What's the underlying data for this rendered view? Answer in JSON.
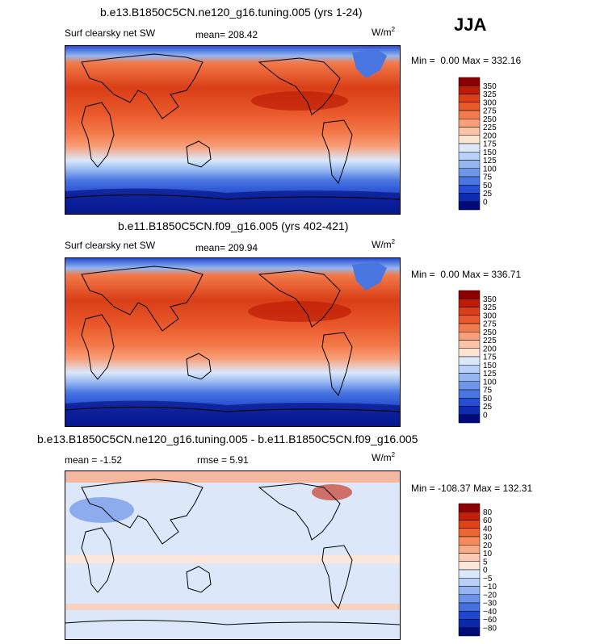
{
  "season": "JJA",
  "units": "W/m",
  "units_exp": "2",
  "chart_data": [
    {
      "type": "heatmap",
      "title": "b.e13.B1850C5CN.ne120_g16.tuning.005 (yrs 1-24)",
      "variable": "Surf clearsky net SW",
      "mean_label": "mean=",
      "mean": "208.42",
      "min_label": "Min =",
      "min": "0.00",
      "max_label": "Max =",
      "max": "332.16",
      "colorbar": {
        "levels": [
          "350",
          "325",
          "300",
          "275",
          "250",
          "225",
          "200",
          "175",
          "150",
          "125",
          "100",
          "75",
          "50",
          "25",
          "0"
        ],
        "colors": [
          "#8b0000",
          "#bd1c06",
          "#d93e16",
          "#e9582a",
          "#f37a4a",
          "#f8a07a",
          "#fbc4a8",
          "#fde3d2",
          "#dce8fa",
          "#b9d1f7",
          "#94b6f1",
          "#6e97ea",
          "#4a76e1",
          "#264ed3",
          "#0d2cb2",
          "#000a78"
        ]
      }
    },
    {
      "type": "heatmap",
      "title": "b.e11.B1850C5CN.f09_g16.005 (yrs 402-421)",
      "variable": "Surf clearsky net SW",
      "mean_label": "mean=",
      "mean": "209.94",
      "min_label": "Min =",
      "min": "0.00",
      "max_label": "Max =",
      "max": "336.71",
      "colorbar": {
        "levels": [
          "350",
          "325",
          "300",
          "275",
          "250",
          "225",
          "200",
          "175",
          "150",
          "125",
          "100",
          "75",
          "50",
          "25",
          "0"
        ],
        "colors": [
          "#8b0000",
          "#bd1c06",
          "#d93e16",
          "#e9582a",
          "#f37a4a",
          "#f8a07a",
          "#fbc4a8",
          "#fde3d2",
          "#dce8fa",
          "#b9d1f7",
          "#94b6f1",
          "#6e97ea",
          "#4a76e1",
          "#264ed3",
          "#0d2cb2",
          "#000a78"
        ]
      }
    },
    {
      "type": "heatmap",
      "title": "b.e13.B1850C5CN.ne120_g16.tuning.005 - b.e11.B1850C5CN.f09_g16.005",
      "mean_label": "mean =",
      "mean": "-1.52",
      "rmse_label": "rmse =",
      "rmse": "5.91",
      "min_label": "Min =",
      "min": "-108.37",
      "max_label": "Max =",
      "max": "132.31",
      "colorbar": {
        "levels": [
          "80",
          "60",
          "40",
          "30",
          "20",
          "10",
          "5",
          "0",
          "-5",
          "-10",
          "-20",
          "-30",
          "-40",
          "-60",
          "-80"
        ],
        "colors": [
          "#8b0000",
          "#c41f08",
          "#de4218",
          "#ee6534",
          "#f68a5c",
          "#f9ab88",
          "#fccab2",
          "#fde6da",
          "#dbe8fb",
          "#b8d0f7",
          "#93b4f0",
          "#6b93e8",
          "#4670de",
          "#1f47cc",
          "#0a28ac",
          "#000a78"
        ]
      }
    }
  ]
}
